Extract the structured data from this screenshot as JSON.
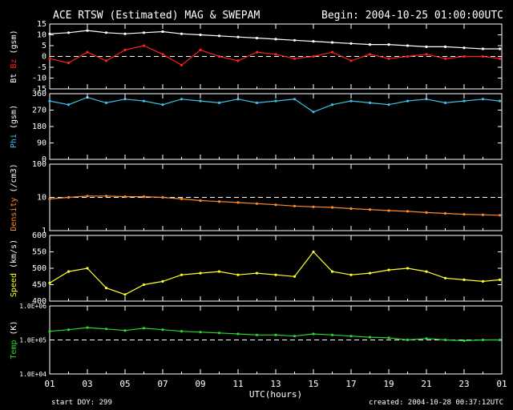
{
  "header": {
    "title": "ACE RTSW (Estimated) MAG & SWEPAM",
    "begin": "Begin: 2004-10-25 01:00:00UTC"
  },
  "footer": {
    "start_doy": "start DOY: 299",
    "created": "created: 2004-10-28 00:37:12UTC"
  },
  "colors": {
    "background": "#000000",
    "axes": "#ffffff",
    "bt": "#ffffff",
    "bz": "#ff2020",
    "phi": "#3fbfe6",
    "density": "#ff8a2a",
    "speed": "#ffff2a",
    "temp": "#2ad62a"
  },
  "chart_data": {
    "type": "scatter",
    "x_axis": {
      "label": "UTC(hours)",
      "range_hours": [
        1,
        25
      ],
      "ticks": [
        "01",
        "03",
        "05",
        "07",
        "09",
        "11",
        "13",
        "15",
        "17",
        "19",
        "21",
        "23",
        "01"
      ]
    },
    "panels": [
      {
        "id": "mag",
        "ylabel_parts": [
          {
            "text": "Bt",
            "color": "#ffffff"
          },
          {
            "text": "Bz",
            "color": "#ff2020"
          },
          {
            "text": "(gsm)",
            "color": "#ffffff"
          }
        ],
        "scale": "linear",
        "ylim": [
          -15,
          15
        ],
        "tick_labels": [
          "15",
          "10",
          "5",
          "0",
          "-5",
          "-10",
          "-15"
        ],
        "tick_values": [
          15,
          10,
          5,
          0,
          -5,
          -10,
          -15
        ],
        "dashed_lines": [
          0
        ],
        "series": [
          {
            "name": "Bt",
            "color": "#ffffff",
            "x": [
              1.0,
              2.0,
              3.0,
              4.0,
              5.0,
              6.0,
              7.0,
              8.0,
              9.0,
              10.0,
              11.0,
              12.0,
              13.0,
              14.0,
              15.0,
              16.0,
              17.0,
              18.0,
              19.0,
              20.0,
              21.0,
              22.0,
              23.0,
              24.0,
              24.9
            ],
            "y": [
              10.5,
              11,
              12,
              11,
              10.5,
              11,
              11.5,
              10.5,
              10,
              9.5,
              9,
              8.5,
              8,
              7.5,
              7,
              6.5,
              6,
              5.5,
              5.5,
              5,
              4.5,
              4.5,
              4,
              3.5,
              3.5
            ]
          },
          {
            "name": "Bz",
            "color": "#ff2020",
            "x": [
              1.0,
              2.0,
              3.0,
              4.0,
              5.0,
              6.0,
              7.0,
              8.0,
              9.0,
              10.0,
              11.0,
              12.0,
              13.0,
              14.0,
              15.0,
              16.0,
              17.0,
              18.0,
              19.0,
              20.0,
              21.0,
              22.0,
              23.0,
              24.0,
              24.9
            ],
            "y": [
              -1,
              -3,
              2,
              -2,
              3,
              5,
              1,
              -4,
              3,
              0,
              -2,
              2,
              1,
              -1,
              0,
              2,
              -2,
              1,
              -1,
              0,
              1,
              -1,
              0,
              0,
              -1
            ]
          }
        ]
      },
      {
        "id": "phi",
        "ylabel_parts": [
          {
            "text": "Phi",
            "color": "#3fbfe6"
          },
          {
            "text": "(gsm)",
            "color": "#ffffff"
          }
        ],
        "scale": "linear",
        "ylim": [
          0,
          360
        ],
        "tick_labels": [
          "360",
          "270",
          "180",
          "90",
          "0"
        ],
        "tick_values": [
          360,
          270,
          180,
          90,
          0
        ],
        "dashed_lines": [],
        "series": [
          {
            "name": "Phi",
            "color": "#3fbfe6",
            "x": [
              1.0,
              2.0,
              3.0,
              4.0,
              5.0,
              6.0,
              7.0,
              8.0,
              9.0,
              10.0,
              11.0,
              12.0,
              13.0,
              14.0,
              15.0,
              16.0,
              17.0,
              18.0,
              19.0,
              20.0,
              21.0,
              22.0,
              23.0,
              24.0,
              24.9
            ],
            "y": [
              320,
              300,
              340,
              310,
              330,
              320,
              300,
              330,
              320,
              310,
              330,
              310,
              320,
              330,
              260,
              300,
              320,
              310,
              300,
              320,
              330,
              310,
              320,
              330,
              320
            ]
          }
        ]
      },
      {
        "id": "density",
        "ylabel_parts": [
          {
            "text": "Density",
            "color": "#ff8a2a"
          },
          {
            "text": "(/cm3)",
            "color": "#ffffff"
          }
        ],
        "scale": "log",
        "ylim": [
          1,
          100
        ],
        "tick_labels": [
          "100",
          "10",
          "1"
        ],
        "tick_values": [
          100,
          10,
          1
        ],
        "dashed_lines": [
          10
        ],
        "series": [
          {
            "name": "Density",
            "color": "#ff8a2a",
            "x": [
              1.0,
              2.0,
              3.0,
              4.0,
              5.0,
              6.0,
              7.0,
              8.0,
              9.0,
              10.0,
              11.0,
              12.0,
              13.0,
              14.0,
              15.0,
              16.0,
              17.0,
              18.0,
              19.0,
              20.0,
              21.0,
              22.0,
              23.0,
              24.0,
              24.9
            ],
            "y": [
              9,
              10,
              11,
              11,
              10.5,
              10.5,
              10,
              9,
              8,
              7.5,
              7,
              6.5,
              6,
              5.5,
              5.2,
              5,
              4.6,
              4.3,
              4,
              3.8,
              3.5,
              3.3,
              3.1,
              3,
              2.9
            ]
          }
        ]
      },
      {
        "id": "speed",
        "ylabel_parts": [
          {
            "text": "Speed",
            "color": "#ffff2a"
          },
          {
            "text": "(km/s)",
            "color": "#ffffff"
          }
        ],
        "scale": "linear",
        "ylim": [
          400,
          600
        ],
        "tick_labels": [
          "600",
          "550",
          "500",
          "450",
          "400"
        ],
        "tick_values": [
          600,
          550,
          500,
          450,
          400
        ],
        "dashed_lines": [],
        "series": [
          {
            "name": "Speed",
            "color": "#ffff2a",
            "x": [
              1.0,
              2.0,
              3.0,
              4.0,
              5.0,
              6.0,
              7.0,
              8.0,
              9.0,
              10.0,
              11.0,
              12.0,
              13.0,
              14.0,
              15.0,
              16.0,
              17.0,
              18.0,
              19.0,
              20.0,
              21.0,
              22.0,
              23.0,
              24.0,
              24.9
            ],
            "y": [
              455,
              490,
              500,
              440,
              420,
              450,
              460,
              480,
              485,
              490,
              480,
              485,
              480,
              475,
              550,
              490,
              480,
              485,
              495,
              500,
              490,
              470,
              465,
              460,
              465
            ]
          }
        ]
      },
      {
        "id": "temp",
        "ylabel_parts": [
          {
            "text": "Temp",
            "color": "#2ad62a"
          },
          {
            "text": "(K)",
            "color": "#ffffff"
          }
        ],
        "scale": "log",
        "ylim": [
          10000,
          1000000
        ],
        "tick_labels": [
          "1.0E+06",
          "1.0E+05",
          "1.0E+04"
        ],
        "tick_values": [
          1000000,
          100000,
          10000
        ],
        "dashed_lines": [
          100000
        ],
        "series": [
          {
            "name": "Temp",
            "color": "#2ad62a",
            "x": [
              1.0,
              2.0,
              3.0,
              4.0,
              5.0,
              6.0,
              7.0,
              8.0,
              9.0,
              10.0,
              11.0,
              12.0,
              13.0,
              14.0,
              15.0,
              16.0,
              17.0,
              18.0,
              19.0,
              20.0,
              21.0,
              22.0,
              23.0,
              24.0,
              24.9
            ],
            "y": [
              180000,
              200000,
              230000,
              210000,
              190000,
              220000,
              200000,
              180000,
              170000,
              160000,
              150000,
              140000,
              140000,
              130000,
              150000,
              140000,
              130000,
              120000,
              115000,
              100000,
              110000,
              100000,
              95000,
              100000,
              100000
            ]
          }
        ]
      }
    ]
  }
}
